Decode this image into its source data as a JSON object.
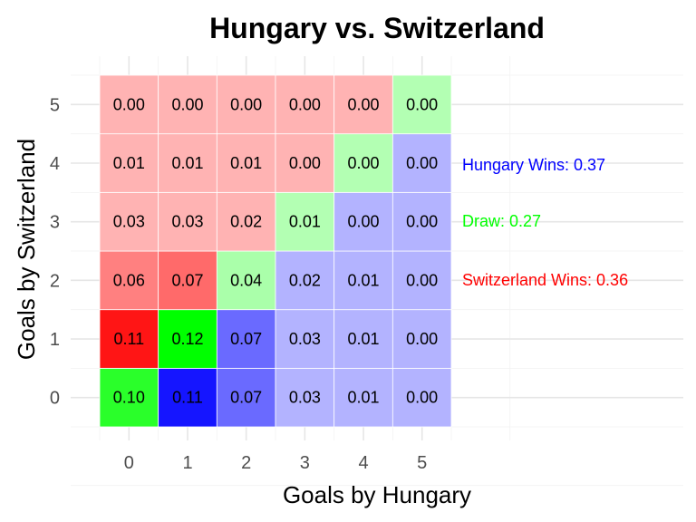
{
  "chart_data": {
    "type": "heatmap",
    "title": "Hungary vs. Switzerland",
    "xlabel": "Goals by Hungary",
    "ylabel": "Goals by Switzerland",
    "x": [
      0,
      1,
      2,
      3,
      4,
      5
    ],
    "y": [
      0,
      1,
      2,
      3,
      4,
      5
    ],
    "xlim": [
      -0.5,
      5.5
    ],
    "ylim": [
      -0.5,
      5.5
    ],
    "values": [
      [
        0.1,
        0.11,
        0.07,
        0.03,
        0.01,
        0.0
      ],
      [
        0.11,
        0.12,
        0.07,
        0.03,
        0.01,
        0.0
      ],
      [
        0.06,
        0.07,
        0.04,
        0.02,
        0.01,
        0.0
      ],
      [
        0.03,
        0.03,
        0.02,
        0.01,
        0.0,
        0.0
      ],
      [
        0.01,
        0.01,
        0.01,
        0.0,
        0.0,
        0.0
      ],
      [
        0.0,
        0.0,
        0.0,
        0.0,
        0.0,
        0.0
      ]
    ],
    "color_rule": {
      "hungary_win": "#0000ff",
      "draw": "#00ff00",
      "switzerland_win": "#ff0000"
    },
    "grid": true,
    "annotations": [
      {
        "text": "Hungary Wins: 0.37",
        "color": "#0000ff"
      },
      {
        "text": "Draw: 0.27",
        "color": "#00ff00"
      },
      {
        "text": "Switzerland Wins: 0.36",
        "color": "#ff0000"
      }
    ]
  }
}
